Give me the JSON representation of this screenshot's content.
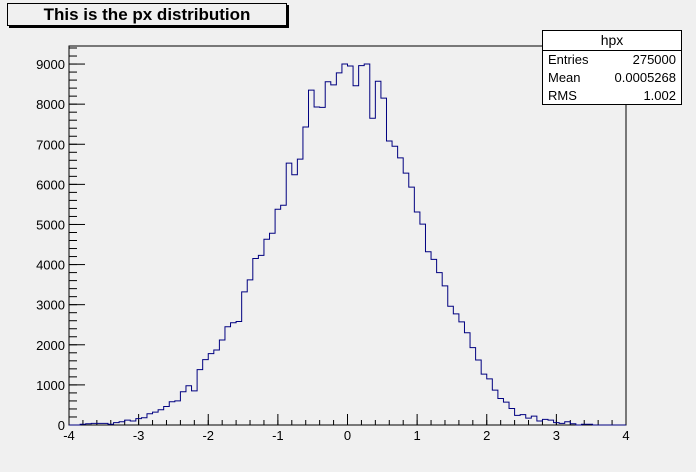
{
  "title": "This is the px distribution",
  "stats": {
    "name": "hpx",
    "rows": [
      {
        "label": "Entries",
        "value": "275000"
      },
      {
        "label": "Mean",
        "value": "0.0005268"
      },
      {
        "label": "RMS",
        "value": "1.002"
      }
    ]
  },
  "colors": {
    "line": "#000080",
    "frame": "#000000",
    "background": "#f0f0f0"
  },
  "chart_data": {
    "type": "histogram",
    "title": "This is the px distribution",
    "xlim": [
      -4,
      4
    ],
    "ylim": [
      0,
      9450
    ],
    "xticks": [
      -4,
      -3,
      -2,
      -1,
      0,
      1,
      2,
      3,
      4
    ],
    "yticks": [
      0,
      1000,
      2000,
      3000,
      4000,
      5000,
      6000,
      7000,
      8000,
      9000
    ],
    "bin_width": 0.08,
    "bin_edges_start": -4,
    "values": [
      0,
      0,
      20,
      30,
      40,
      40,
      40,
      20,
      60,
      80,
      120,
      100,
      160,
      180,
      280,
      320,
      380,
      460,
      580,
      600,
      830,
      980,
      850,
      1380,
      1630,
      1780,
      1870,
      2120,
      2450,
      2550,
      2580,
      3320,
      3620,
      4150,
      4230,
      4630,
      4780,
      5380,
      5480,
      6530,
      6240,
      6630,
      7430,
      8350,
      7930,
      7920,
      8560,
      8480,
      8780,
      9000,
      8950,
      8460,
      8960,
      9000,
      7650,
      8570,
      8150,
      7080,
      6950,
      6660,
      6280,
      5930,
      5310,
      5010,
      4320,
      4130,
      3800,
      3470,
      2960,
      2770,
      2570,
      2300,
      1930,
      1620,
      1270,
      1150,
      870,
      660,
      570,
      410,
      240,
      260,
      170,
      220,
      100,
      140,
      120,
      60,
      40,
      80,
      30,
      0,
      20,
      20,
      0,
      0,
      0,
      0,
      0,
      0
    ]
  }
}
